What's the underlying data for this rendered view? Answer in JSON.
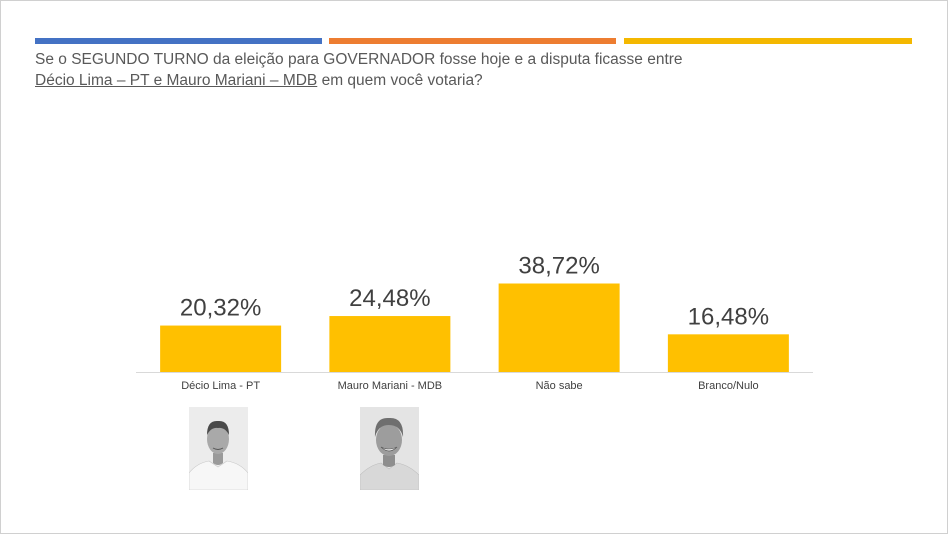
{
  "colors": {
    "stripe_1": "#4472c4",
    "stripe_2": "#ed7d31",
    "stripe_3": "#f4b800",
    "bar": "#ffc000",
    "question_text": "#595959",
    "value_label": "#404040",
    "category_label": "#404040"
  },
  "question": {
    "line1": "Se o SEGUNDO TURNO da eleição para GOVERNADOR fosse hoje e a disputa ficasse entre",
    "underlined": "Décio Lima – PT e Mauro Mariani – MDB",
    "rest": " em quem você votaria?"
  },
  "chart_data": {
    "type": "bar",
    "categories": [
      "Décio Lima - PT",
      "Mauro Mariani - MDB",
      "Não sabe",
      "Branco/Nulo"
    ],
    "values": [
      20.32,
      24.48,
      38.72,
      16.48
    ],
    "value_labels": [
      "20,32%",
      "24,48%",
      "38,72%",
      "16,48%"
    ],
    "unit": "%",
    "ylim": [
      0,
      70
    ],
    "grid": false,
    "legend": "none"
  },
  "photos": [
    {
      "subject": "Décio Lima - PT",
      "icon": "candidate-photo-icon"
    },
    {
      "subject": "Mauro Mariani - MDB",
      "icon": "candidate-photo-icon"
    }
  ]
}
